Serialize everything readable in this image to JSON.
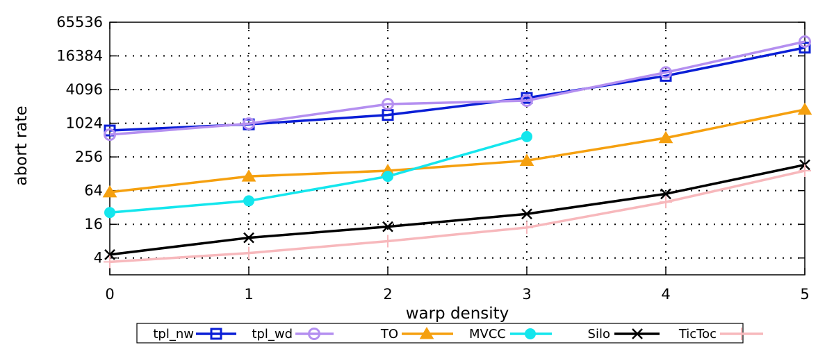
{
  "chart_data": {
    "type": "line",
    "title": "",
    "xlabel": "warp density",
    "ylabel": "abort rate",
    "x": [
      0,
      1,
      2,
      3,
      4,
      5
    ],
    "xlim": [
      0,
      5
    ],
    "ylim": [
      2,
      65536
    ],
    "yscale": "log2",
    "yticks": [
      4,
      16,
      64,
      256,
      1024,
      4096,
      16384,
      65536
    ],
    "ytick_labels": [
      "4",
      "16",
      "64",
      "256",
      "1024",
      "4096",
      "16384",
      "65536"
    ],
    "xtick_labels": [
      "0",
      "1",
      "2",
      "3",
      "4",
      "5"
    ],
    "grid": "dotted",
    "legend_position": "bottom",
    "series": [
      {
        "name": "tpl_nw",
        "color": "#0a1ed6",
        "marker": "square",
        "x": [
          0,
          1,
          2,
          3,
          4,
          5
        ],
        "values": [
          760,
          980,
          1440,
          2900,
          7200,
          23000
        ]
      },
      {
        "name": "tpl_wd",
        "color": "#b48ff0",
        "marker": "circle-open",
        "x": [
          0,
          1,
          2,
          3,
          4,
          5
        ],
        "values": [
          640,
          1010,
          2250,
          2600,
          8300,
          29500
        ]
      },
      {
        "name": "TO",
        "color": "#f5a00f",
        "marker": "triangle",
        "x": [
          0,
          1,
          2,
          3,
          4,
          5
        ],
        "values": [
          60,
          115,
          145,
          220,
          560,
          1800
        ]
      },
      {
        "name": "MVCC",
        "color": "#14e6ed",
        "marker": "circle-filled",
        "x": [
          0,
          1,
          2,
          3
        ],
        "values": [
          26,
          42,
          115,
          590
        ]
      },
      {
        "name": "Silo",
        "color": "#000000",
        "marker": "x",
        "x": [
          0,
          1,
          2,
          3,
          4,
          5
        ],
        "values": [
          4.6,
          9.2,
          14.5,
          24.5,
          56,
          185
        ]
      },
      {
        "name": "TicToc",
        "color": "#f7b8bc",
        "marker": "plus",
        "x": [
          0,
          1,
          2,
          3,
          4,
          5
        ],
        "values": [
          3.4,
          4.9,
          8.0,
          14.0,
          40,
          145
        ]
      }
    ]
  }
}
